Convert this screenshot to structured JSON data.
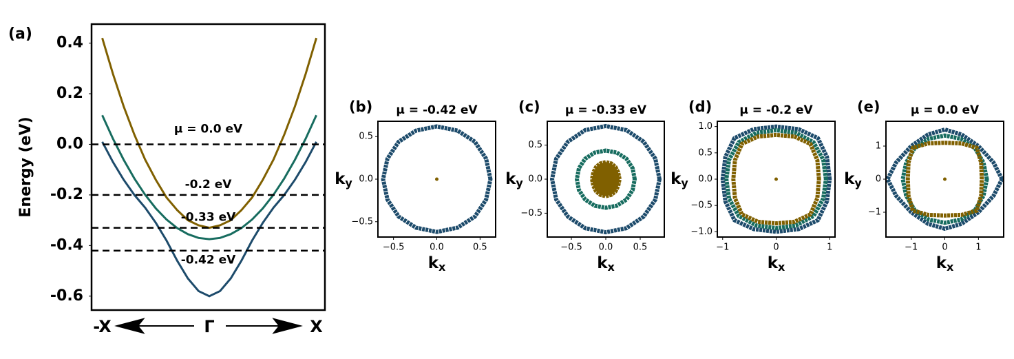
{
  "chart_data": [
    {
      "type": "line",
      "panel_label": "(a)",
      "ylabel": "Energy (eV)",
      "x": [
        -1,
        -0.9,
        -0.8,
        -0.7,
        -0.6,
        -0.5,
        -0.4,
        -0.3,
        -0.2,
        -0.1,
        0,
        0.1,
        0.2,
        0.3,
        0.4,
        0.5,
        0.6,
        0.7,
        0.8,
        0.9,
        1
      ],
      "xlim": [
        -1.1,
        1.08
      ],
      "xticks": [
        {
          "value": -1,
          "label": "-X"
        },
        {
          "value": 0,
          "label": "Γ"
        },
        {
          "value": 1,
          "label": "X"
        }
      ],
      "ylim": [
        -0.655,
        0.475
      ],
      "yticks": [
        0.4,
        0.2,
        {
          "value": 0,
          "label": "0.0"
        },
        -0.2,
        -0.4,
        -0.6
      ],
      "series": [
        {
          "color": "#176c5f",
          "values": [
            0.115,
            0.022,
            -0.061,
            -0.135,
            -0.199,
            -0.253,
            -0.297,
            -0.331,
            -0.355,
            -0.37,
            -0.375,
            -0.37,
            -0.355,
            -0.331,
            -0.297,
            -0.253,
            -0.199,
            -0.135,
            -0.061,
            0.022,
            0.115
          ]
        },
        {
          "color": "#806000",
          "values": [
            0.42,
            0.278,
            0.15,
            0.038,
            -0.06,
            -0.14,
            -0.21,
            -0.26,
            -0.3,
            -0.32,
            -0.33,
            -0.32,
            -0.3,
            -0.26,
            -0.21,
            -0.14,
            -0.06,
            0.038,
            0.15,
            0.278,
            0.42
          ]
        },
        {
          "color": "#1d4b6b",
          "values": [
            0.01,
            -0.07,
            -0.14,
            -0.2,
            -0.25,
            -0.31,
            -0.38,
            -0.46,
            -0.53,
            -0.58,
            -0.6,
            -0.58,
            -0.53,
            -0.46,
            -0.38,
            -0.31,
            -0.25,
            -0.2,
            -0.14,
            -0.07,
            0.01
          ]
        }
      ],
      "hlines": [
        {
          "value": 0,
          "label": "μ = 0.0 eV"
        },
        {
          "value": -0.2,
          "label": "-0.2 eV"
        },
        {
          "value": -0.33,
          "label": "-0.33 eV"
        },
        {
          "value": -0.42,
          "label": "-0.42 eV"
        }
      ]
    },
    {
      "type": "scatter",
      "panel_label": "(b)",
      "title": "μ = -0.42 eV",
      "xlabel": "k",
      "xlabel_sub": "x",
      "ylabel": "k",
      "ylabel_sub": "y",
      "xlim": [
        -0.68,
        0.68
      ],
      "ylim": [
        -0.68,
        0.68
      ],
      "xticks": [
        {
          "value": -0.5,
          "label": "−0.5"
        },
        {
          "value": 0,
          "label": "0.0"
        },
        0.5
      ],
      "yticks": [
        {
          "value": -0.5,
          "label": "−0.5"
        },
        {
          "value": 0,
          "label": "0.0"
        },
        0.5
      ],
      "series": [
        {
          "color": "#1d4b6b",
          "x": [
            0.62,
            0.57,
            0.44,
            0.24,
            0,
            -0.24,
            -0.44,
            -0.57,
            -0.62,
            -0.57,
            -0.44,
            -0.24,
            0,
            0.24,
            0.44,
            0.57
          ],
          "y": [
            0,
            0.24,
            0.44,
            0.57,
            0.62,
            0.57,
            0.44,
            0.24,
            0,
            -0.24,
            -0.44,
            -0.57,
            -0.62,
            -0.57,
            -0.44,
            -0.24
          ]
        },
        {
          "color": "#806000",
          "x": [
            0
          ],
          "y": [
            0
          ]
        }
      ]
    },
    {
      "type": "scatter",
      "panel_label": "(c)",
      "title": "μ = -0.33 eV",
      "xlabel": "k",
      "xlabel_sub": "x",
      "ylabel": "k",
      "ylabel_sub": "y",
      "xlim": [
        -0.85,
        0.85
      ],
      "ylim": [
        -0.85,
        0.85
      ],
      "xticks": [
        {
          "value": -0.5,
          "label": "−0.5"
        },
        {
          "value": 0,
          "label": "0.0"
        },
        0.5
      ],
      "yticks": [
        {
          "value": -0.5,
          "label": "−0.5"
        },
        {
          "value": 0,
          "label": "0.0"
        },
        0.5
      ],
      "series": [
        {
          "color": "#1d4b6b",
          "x": [
            0.78,
            0.72,
            0.55,
            0.3,
            0,
            -0.3,
            -0.55,
            -0.72,
            -0.78,
            -0.72,
            -0.55,
            -0.3,
            0,
            0.3,
            0.55,
            0.72
          ],
          "y": [
            0,
            0.3,
            0.55,
            0.72,
            0.78,
            0.72,
            0.55,
            0.3,
            0,
            -0.3,
            -0.55,
            -0.72,
            -0.78,
            -0.72,
            -0.55,
            -0.3
          ]
        },
        {
          "color": "#176c5f",
          "x": [
            0.42,
            0.39,
            0.3,
            0.16,
            0,
            -0.16,
            -0.3,
            -0.39,
            -0.42,
            -0.39,
            -0.3,
            -0.16,
            0,
            0.16,
            0.3,
            0.39
          ],
          "y": [
            0,
            0.16,
            0.3,
            0.39,
            0.42,
            0.39,
            0.3,
            0.16,
            0,
            -0.16,
            -0.3,
            -0.39,
            -0.42,
            -0.39,
            -0.3,
            -0.16
          ]
        },
        {
          "color": "#806000",
          "filled": true,
          "x": [
            0.2,
            0.18,
            0.14,
            0.08,
            0,
            -0.08,
            -0.14,
            -0.18,
            -0.2,
            -0.18,
            -0.14,
            -0.08,
            0,
            0.08,
            0.14,
            0.18
          ],
          "y": [
            0,
            0.1,
            0.18,
            0.23,
            0.25,
            0.23,
            0.18,
            0.1,
            0,
            -0.1,
            -0.18,
            -0.23,
            -0.25,
            -0.23,
            -0.18,
            -0.1
          ]
        }
      ]
    },
    {
      "type": "scatter",
      "panel_label": "(d)",
      "title": "μ = -0.2 eV",
      "xlabel": "k",
      "xlabel_sub": "x",
      "ylabel": "k",
      "ylabel_sub": "y",
      "xlim": [
        -1.1,
        1.1
      ],
      "ylim": [
        -1.1,
        1.1
      ],
      "xticks": [
        {
          "value": -1,
          "label": "−1"
        },
        0,
        1
      ],
      "yticks": [
        {
          "value": -1,
          "label": "−1.0"
        },
        {
          "value": -0.5,
          "label": "−0.5"
        },
        {
          "value": 0,
          "label": "0.0"
        },
        0.5,
        {
          "value": 1,
          "label": "1.0"
        }
      ],
      "series": [
        {
          "color": "#1d4b6b",
          "x": [
            1,
            0.95,
            0.78,
            0.42,
            0,
            -0.42,
            -0.78,
            -0.95,
            -1,
            -0.95,
            -0.78,
            -0.42,
            0,
            0.42,
            0.78,
            0.95
          ],
          "y": [
            0,
            0.42,
            0.78,
            0.95,
            1,
            0.95,
            0.78,
            0.42,
            0,
            -0.42,
            -0.78,
            -0.95,
            -1,
            -0.95,
            -0.78,
            -0.42
          ]
        },
        {
          "color": "#176c5f",
          "x": [
            0.93,
            0.88,
            0.7,
            0.37,
            0,
            -0.37,
            -0.7,
            -0.88,
            -0.93,
            -0.88,
            -0.7,
            -0.37,
            0,
            0.37,
            0.7,
            0.88
          ],
          "y": [
            0,
            0.37,
            0.7,
            0.88,
            0.93,
            0.88,
            0.7,
            0.37,
            0,
            -0.37,
            -0.7,
            -0.88,
            -0.93,
            -0.88,
            -0.7,
            -0.37
          ]
        },
        {
          "color": "#806000",
          "x": [
            0.8,
            0.77,
            0.64,
            0.34,
            0,
            -0.34,
            -0.64,
            -0.77,
            -0.8,
            -0.77,
            -0.64,
            -0.34,
            0,
            0.34,
            0.64,
            0.77
          ],
          "y": [
            0,
            0.36,
            0.67,
            0.81,
            0.84,
            0.81,
            0.67,
            0.36,
            0,
            -0.36,
            -0.67,
            -0.81,
            -0.84,
            -0.81,
            -0.67,
            -0.36
          ]
        },
        {
          "color": "#806000",
          "x": [
            0
          ],
          "y": [
            0
          ]
        }
      ]
    },
    {
      "type": "scatter",
      "panel_label": "(e)",
      "title": "μ = 0.0 eV",
      "xlabel": "k",
      "xlabel_sub": "x",
      "ylabel": "k",
      "ylabel_sub": "y",
      "xlim": [
        -1.75,
        1.75
      ],
      "ylim": [
        -1.75,
        1.75
      ],
      "xticks": [
        {
          "value": -1,
          "label": "−1"
        },
        0,
        1
      ],
      "yticks": [
        {
          "value": -1,
          "label": "−1"
        },
        0,
        1
      ],
      "series": [
        {
          "color": "#1d4b6b",
          "x": [
            1.7,
            1.45,
            1,
            0.5,
            0,
            -0.5,
            -1,
            -1.45,
            -1.7,
            -1.45,
            -1,
            -0.5,
            0,
            0.5,
            1,
            1.45
          ],
          "y": [
            0,
            0.5,
            1,
            1.35,
            1.5,
            1.35,
            1,
            0.5,
            0,
            -0.5,
            -1,
            -1.35,
            -1.5,
            -1.35,
            -1,
            -0.5
          ]
        },
        {
          "color": "#176c5f",
          "x": [
            1.25,
            1.15,
            0.9,
            0.48,
            0,
            -0.48,
            -0.9,
            -1.15,
            -1.25,
            -1.15,
            -0.9,
            -0.48,
            0,
            0.48,
            0.9,
            1.15
          ],
          "y": [
            0,
            0.5,
            0.93,
            1.22,
            1.32,
            1.22,
            0.93,
            0.5,
            0,
            -0.5,
            -0.93,
            -1.22,
            -1.32,
            -1.22,
            -0.93,
            -0.5
          ]
        },
        {
          "color": "#806000",
          "x": [
            1.1,
            1.08,
            0.95,
            0.5,
            0,
            -0.5,
            -0.95,
            -1.08,
            -1.1,
            -1.08,
            -0.95,
            -0.5,
            0,
            0.5,
            0.95,
            1.08
          ],
          "y": [
            0,
            0.5,
            0.95,
            1.08,
            1.1,
            1.08,
            0.95,
            0.5,
            0,
            -0.5,
            -0.95,
            -1.08,
            -1.1,
            -1.08,
            -0.95,
            -0.5
          ]
        },
        {
          "color": "#806000",
          "x": [
            0
          ],
          "y": [
            0
          ]
        }
      ]
    }
  ]
}
